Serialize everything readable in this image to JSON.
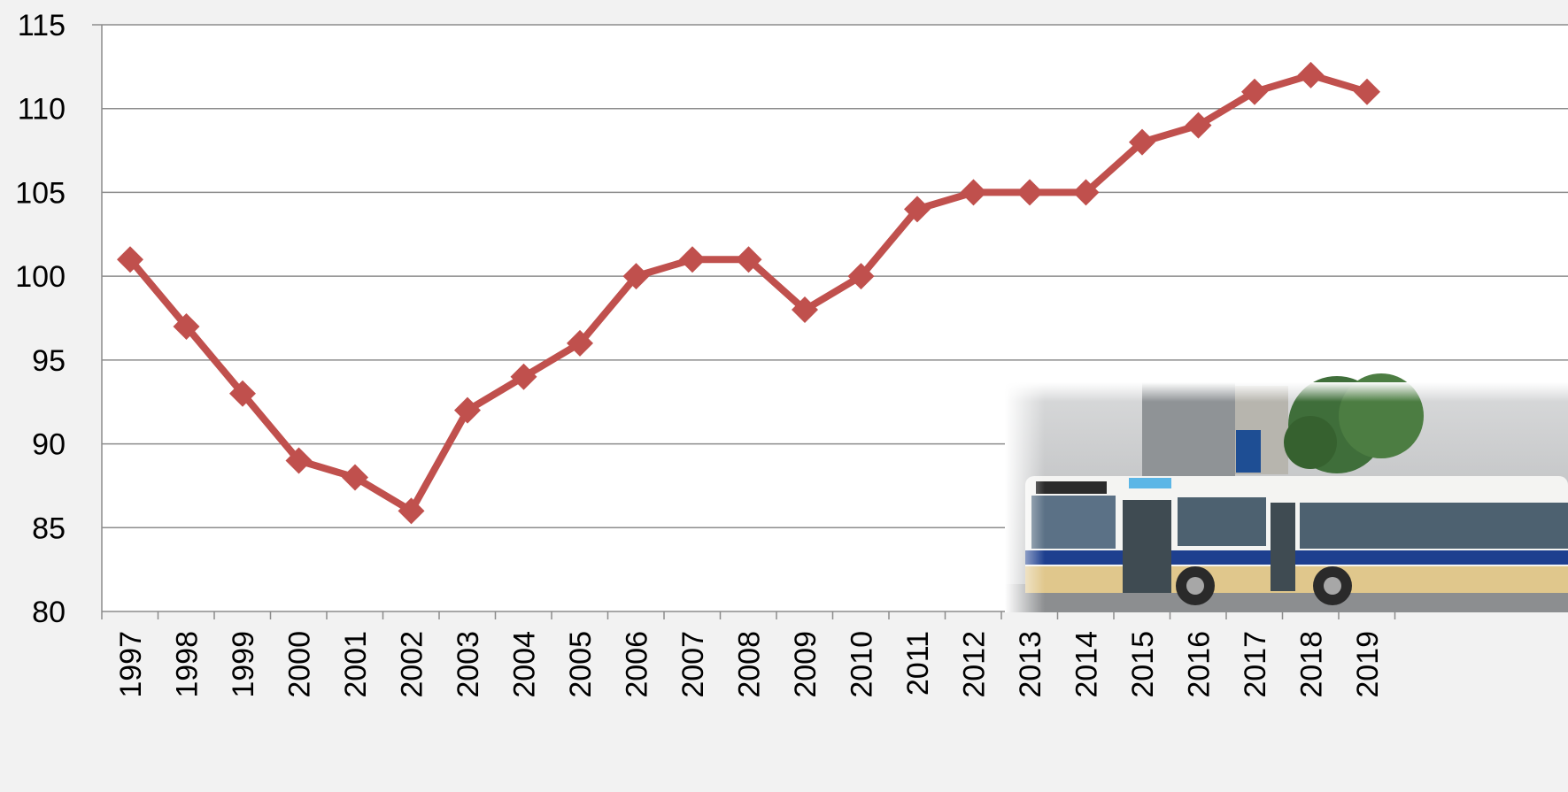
{
  "chart_data": {
    "type": "line",
    "title": "",
    "xlabel": "",
    "ylabel": "",
    "x": [
      "1997",
      "1998",
      "1999",
      "2000",
      "2001",
      "2002",
      "2003",
      "2004",
      "2005",
      "2006",
      "2007",
      "2008",
      "2009",
      "2010",
      "2011",
      "2012",
      "2013",
      "2014",
      "2015",
      "2016",
      "2017",
      "2018",
      "2019"
    ],
    "series": [
      {
        "values": [
          101,
          97,
          93,
          89,
          88,
          86,
          92,
          94,
          96,
          100,
          101,
          101,
          98,
          100,
          104,
          105,
          105,
          105,
          108,
          109,
          111,
          112,
          111
        ]
      }
    ],
    "ylim": [
      80,
      115
    ],
    "yticks": [
      80,
      85,
      90,
      95,
      100,
      105,
      110,
      115
    ],
    "grid": true,
    "legend": "none",
    "line_color": "#c0504d",
    "grid_color": "#8c8c8c",
    "background_color": "#f2f2f2",
    "plot_background": "#ffffff",
    "marker": "diamond"
  },
  "inset_image": {
    "icon": "bus-photo-icon"
  }
}
